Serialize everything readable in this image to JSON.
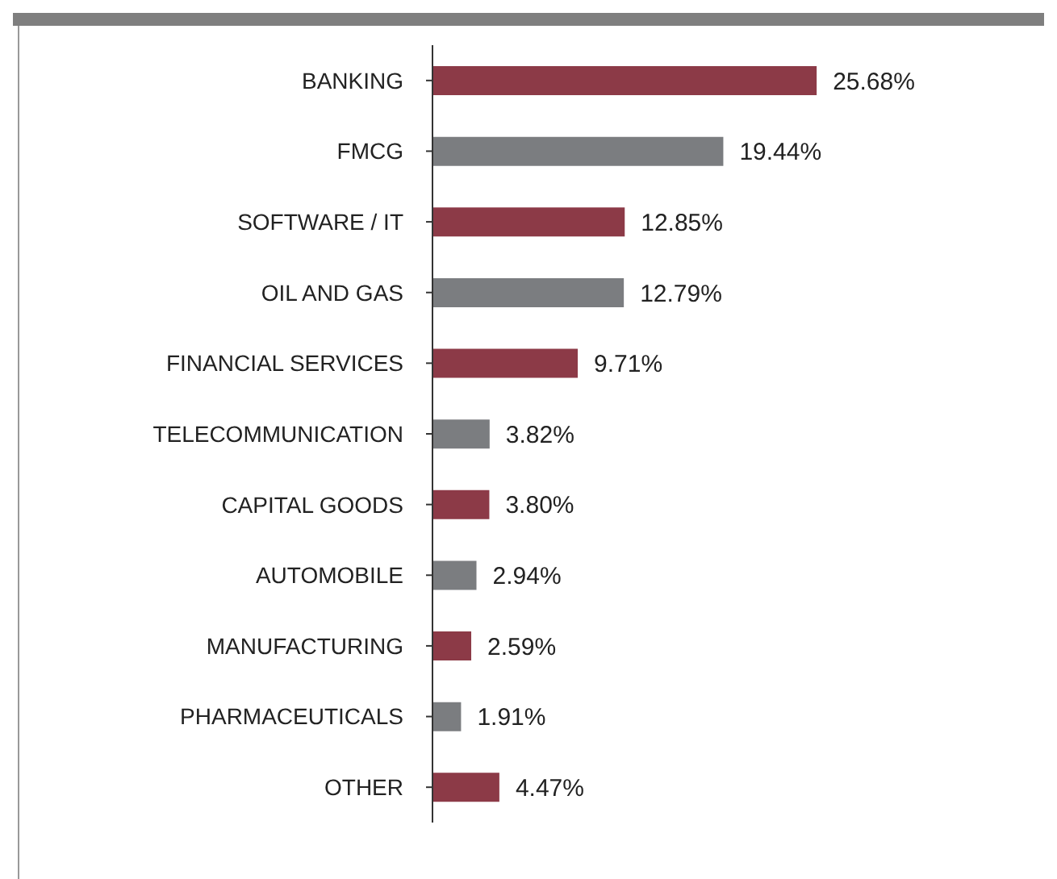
{
  "chart_data": {
    "type": "bar",
    "orientation": "horizontal",
    "categories": [
      "BANKING",
      "FMCG",
      "SOFTWARE / IT",
      "OIL AND GAS",
      "FINANCIAL SERVICES",
      "TELECOMMUNICATION",
      "CAPITAL GOODS",
      "AUTOMOBILE",
      "MANUFACTURING",
      "PHARMACEUTICALS",
      "OTHER"
    ],
    "values": [
      25.68,
      19.44,
      12.85,
      12.79,
      9.71,
      3.82,
      3.8,
      2.94,
      2.59,
      1.91,
      4.47
    ],
    "colors": [
      "#8c3a47",
      "#7b7d80",
      "#8c3a47",
      "#7b7d80",
      "#8c3a47",
      "#7b7d80",
      "#8c3a47",
      "#7b7d80",
      "#8c3a47",
      "#7b7d80",
      "#8c3a47"
    ],
    "value_labels": [
      "25.68%",
      "19.44%",
      "12.85%",
      "12.79%",
      "9.71%",
      "3.82%",
      "3.80%",
      "2.94%",
      "2.59%",
      "1.91%",
      "4.47%"
    ]
  }
}
